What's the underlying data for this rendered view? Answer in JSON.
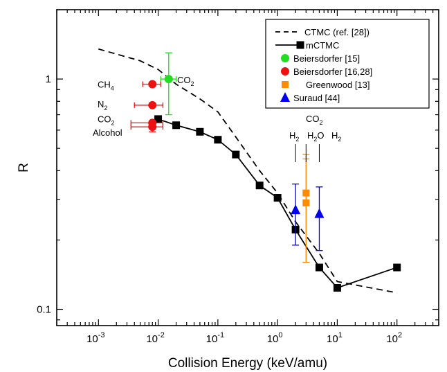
{
  "chart_data": {
    "type": "scatter",
    "xlabel": "Collision Energy (keV/amu)",
    "ylabel": "R",
    "xscale": "log",
    "yscale": "log",
    "xlim": [
      0.0002,
      500
    ],
    "ylim": [
      0.085,
      2.0
    ],
    "x_ticks": [
      {
        "value": 0.001,
        "base": "10",
        "exp": "-3"
      },
      {
        "value": 0.01,
        "base": "10",
        "exp": "-2"
      },
      {
        "value": 0.1,
        "base": "10",
        "exp": "-1"
      },
      {
        "value": 1,
        "base": "10",
        "exp": "0"
      },
      {
        "value": 10,
        "base": "10",
        "exp": "1"
      },
      {
        "value": 100,
        "base": "10",
        "exp": "2"
      }
    ],
    "y_ticks": [
      {
        "value": 1,
        "label": "1"
      },
      {
        "value": 0.1,
        "label": "0.1"
      }
    ],
    "legend_position": "top-right",
    "series": [
      {
        "name": "CTMC (ref. [28])",
        "style": "dashed-line",
        "color": "#000000",
        "x": [
          0.001,
          0.005,
          0.01,
          0.02,
          0.05,
          0.1,
          0.2,
          0.5,
          1,
          2,
          5,
          10,
          100
        ],
        "y": [
          1.35,
          1.2,
          1.1,
          0.95,
          0.82,
          0.72,
          0.56,
          0.4,
          0.32,
          0.24,
          0.175,
          0.132,
          0.118
        ]
      },
      {
        "name": "mCTMC",
        "style": "line-square",
        "color": "#000000",
        "x": [
          0.01,
          0.02,
          0.05,
          0.1,
          0.2,
          0.5,
          1,
          2,
          5,
          10,
          100
        ],
        "y": [
          0.67,
          0.63,
          0.59,
          0.545,
          0.47,
          0.345,
          0.305,
          0.222,
          0.152,
          0.124,
          0.152
        ]
      },
      {
        "name": "Beiersdorfer [15]",
        "style": "circle",
        "color": "#22dd22",
        "points": [
          {
            "x": 0.015,
            "y": 1.0,
            "ylo": 0.7,
            "yhi": 1.3,
            "xlo": 0.011,
            "xhi": 0.02
          }
        ]
      },
      {
        "name": "Beiersdorfer [16,28]",
        "style": "circle",
        "color": "#ee1111",
        "points": [
          {
            "x": 0.008,
            "y": 0.95,
            "xlo": 0.0055,
            "xhi": 0.011
          },
          {
            "x": 0.008,
            "y": 0.77,
            "xlo": 0.004,
            "xhi": 0.012
          },
          {
            "x": 0.008,
            "y": 0.645,
            "xlo": 0.0035,
            "xhi": 0.012
          },
          {
            "x": 0.008,
            "y": 0.62,
            "xlo": 0.0035,
            "xhi": 0.012,
            "ylo": 0.59,
            "yhi": 0.65
          }
        ]
      },
      {
        "name": "Greenwood [13]",
        "style": "square",
        "color": "#ff8c00",
        "points": [
          {
            "x": 3,
            "y": 0.32,
            "ylo": 0.16,
            "yhi": 0.47
          },
          {
            "x": 3,
            "y": 0.29,
            "ylo": 0.16,
            "yhi": 0.45
          }
        ]
      },
      {
        "name": "Suraud [44]",
        "style": "triangle",
        "color": "#0000ee",
        "points": [
          {
            "x": 2,
            "y": 0.27,
            "ylo": 0.19,
            "yhi": 0.35
          },
          {
            "x": 5,
            "y": 0.26,
            "ylo": 0.18,
            "yhi": 0.34
          }
        ]
      }
    ],
    "annotations": {
      "left_labels": [
        {
          "id": "ch4",
          "base": "CH",
          "sub": "4"
        },
        {
          "id": "n2",
          "base": "N",
          "sub": "2"
        },
        {
          "id": "co2",
          "base": "CO",
          "sub": "2"
        },
        {
          "id": "alcohol",
          "base": "Alcohol",
          "sub": ""
        }
      ],
      "green_label": {
        "base": "CO",
        "sub": "2"
      },
      "right_labels": {
        "co2": {
          "base": "CO",
          "sub": "2"
        },
        "h2_left": {
          "base": "H",
          "sub": "2"
        },
        "h2o": {
          "base": "H",
          "sub": "2",
          "tail": "O"
        },
        "h2_right": {
          "base": "H",
          "sub": "2"
        }
      }
    }
  }
}
